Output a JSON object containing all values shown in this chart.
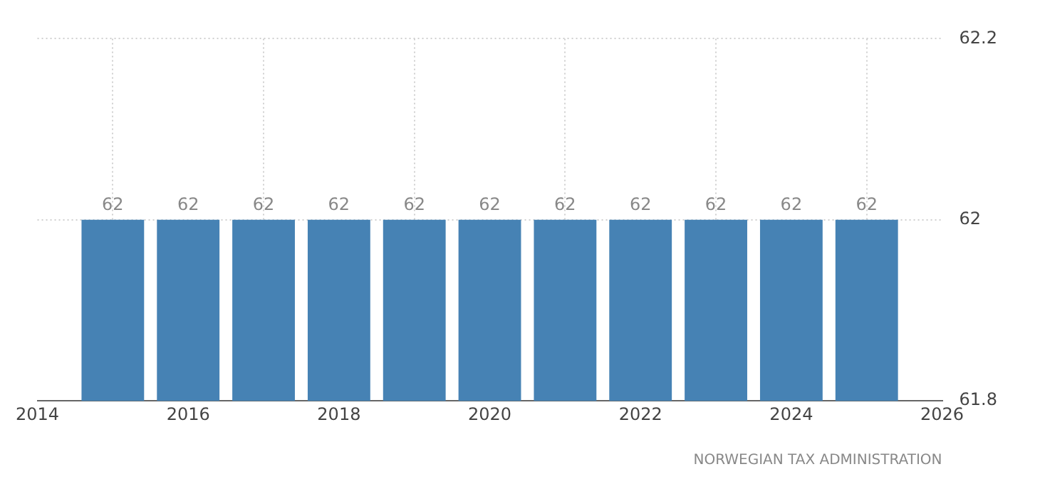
{
  "chart_data": {
    "type": "bar",
    "x": [
      2015,
      2016,
      2017,
      2018,
      2019,
      2020,
      2021,
      2022,
      2023,
      2024,
      2025
    ],
    "values": [
      62,
      62,
      62,
      62,
      62,
      62,
      62,
      62,
      62,
      62,
      62
    ],
    "color": "#4682b4",
    "xlim": [
      2014,
      2026
    ],
    "xticks": [
      2014,
      2016,
      2018,
      2020,
      2022,
      2024,
      2026
    ],
    "ylim": [
      61.8,
      62.2
    ],
    "yticks": [
      61.8,
      62,
      62.2
    ],
    "grid": true,
    "data_labels": true,
    "annotations": [
      "NORWEGIAN TAX ADMINISTRATION"
    ]
  }
}
